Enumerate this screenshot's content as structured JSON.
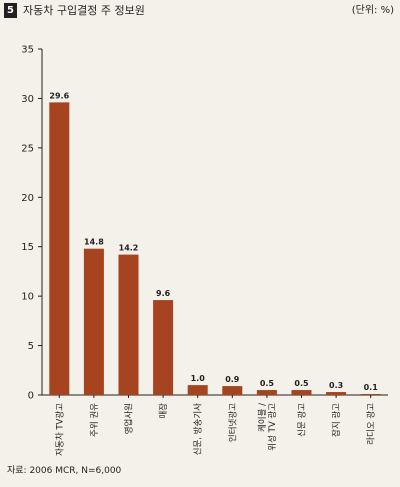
{
  "header": {
    "badge": "5",
    "title": "자동차 구입결정 주 정보원",
    "unit": "(단위: %)"
  },
  "footer": {
    "source": "자료: 2006 MCR, N=6,000"
  },
  "colors": {
    "bar": "#a5441f",
    "axis": "#231f20",
    "background": "#f4f1ea"
  },
  "chart_data": {
    "type": "bar",
    "categories": [
      [
        "자동차 TV광고"
      ],
      [
        "주위 권유"
      ],
      [
        "영업사원"
      ],
      [
        "매장"
      ],
      [
        "신문, 방송기사"
      ],
      [
        "인터넷광고"
      ],
      [
        "케이블 /",
        "위성 TV 광고"
      ],
      [
        "신문 광고"
      ],
      [
        "잡지 광고"
      ],
      [
        "라디오 광고"
      ]
    ],
    "values": [
      29.6,
      14.8,
      14.2,
      9.6,
      1.0,
      0.9,
      0.5,
      0.5,
      0.3,
      0.1
    ],
    "value_labels": [
      "29.6",
      "14.8",
      "14.2",
      "9.6",
      "1.0",
      "0.9",
      "0.5",
      "0.5",
      "0.3",
      "0.1"
    ],
    "yticks": [
      0,
      5,
      10,
      15,
      20,
      25,
      30,
      35
    ],
    "ylim": [
      0,
      35
    ],
    "grid": false,
    "legend": "none"
  }
}
